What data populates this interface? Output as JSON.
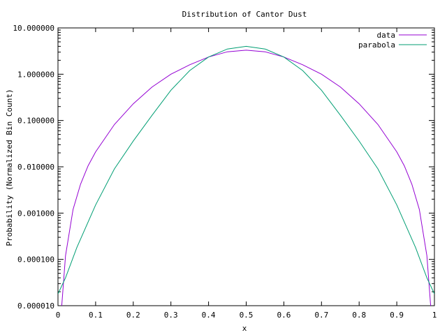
{
  "chart_data": {
    "type": "line",
    "title": "Distribution of Cantor Dust",
    "xlabel": "x",
    "ylabel": "Probability (Normalized Bin Count)",
    "xlim": [
      0,
      1
    ],
    "ylim": [
      1e-05,
      10
    ],
    "yscale": "log",
    "grid": false,
    "legend": "top-right",
    "x_ticks": [
      "0",
      "0.1",
      "0.2",
      "0.3",
      "0.4",
      "0.5",
      "0.6",
      "0.7",
      "0.8",
      "0.9",
      "1"
    ],
    "y_ticks": [
      "0.000010",
      "0.000100",
      "0.001000",
      "0.010000",
      "0.100000",
      "1.000000",
      "10.000000"
    ],
    "series": [
      {
        "name": "data",
        "color": "#9400d3",
        "x": [
          0.01,
          0.02,
          0.04,
          0.06,
          0.08,
          0.1,
          0.15,
          0.2,
          0.25,
          0.3,
          0.35,
          0.4,
          0.45,
          0.5,
          0.55,
          0.6,
          0.65,
          0.7,
          0.75,
          0.8,
          0.85,
          0.9,
          0.92,
          0.94,
          0.96,
          0.98,
          0.99
        ],
        "y": [
          1e-05,
          0.00012,
          0.0012,
          0.0042,
          0.0105,
          0.021,
          0.082,
          0.23,
          0.53,
          1.0,
          1.6,
          2.35,
          3.05,
          3.3,
          3.05,
          2.35,
          1.6,
          1.0,
          0.53,
          0.23,
          0.082,
          0.021,
          0.0105,
          0.0042,
          0.0012,
          0.00012,
          1e-05
        ]
      },
      {
        "name": "parabola",
        "color": "#009e73",
        "x": [
          0,
          0.02,
          0.05,
          0.1,
          0.15,
          0.2,
          0.25,
          0.3,
          0.35,
          0.4,
          0.45,
          0.5,
          0.55,
          0.6,
          0.65,
          0.7,
          0.75,
          0.8,
          0.85,
          0.9,
          0.95,
          0.98,
          1
        ],
        "y": [
          1.8e-05,
          4e-05,
          0.00018,
          0.0015,
          0.009,
          0.036,
          0.13,
          0.45,
          1.2,
          2.35,
          3.5,
          4.0,
          3.5,
          2.35,
          1.2,
          0.45,
          0.13,
          0.036,
          0.009,
          0.0015,
          0.00018,
          4e-05,
          1.8e-05
        ]
      }
    ]
  }
}
